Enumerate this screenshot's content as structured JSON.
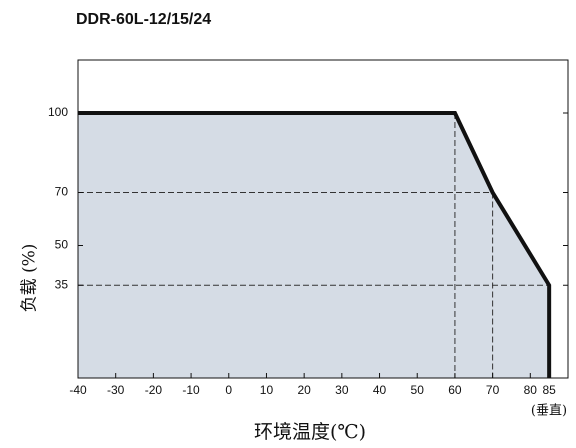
{
  "chart_data": {
    "type": "line",
    "title": "DDR-60L-12/15/24",
    "x_label": "环境温度(℃)",
    "y_label": "负载 (%)",
    "annotation": "(垂直)",
    "x": [
      -40,
      60,
      70,
      85
    ],
    "values": [
      100,
      100,
      70,
      35
    ],
    "color": "#111111",
    "fill": "#d5dce5",
    "xlim": [
      -40,
      90
    ],
    "xticks": [
      -40,
      -30,
      -20,
      -10,
      0,
      10,
      20,
      30,
      40,
      50,
      60,
      70,
      80,
      85
    ],
    "ylim": [
      0,
      120
    ],
    "yticks": [
      35,
      50,
      70,
      100
    ]
  }
}
